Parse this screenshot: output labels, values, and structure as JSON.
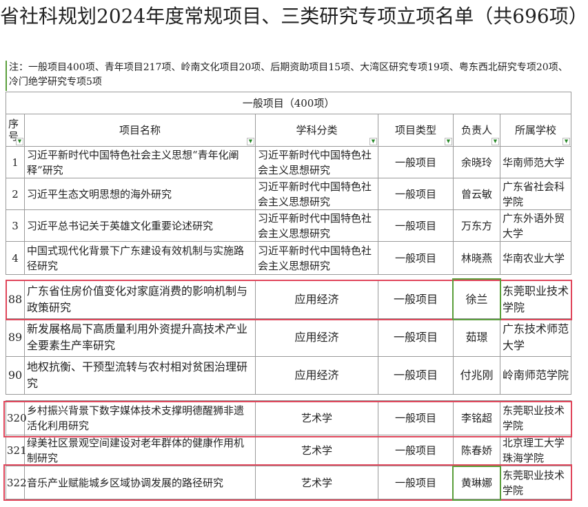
{
  "title": "省社科规划2024年度常规项目、三类研究专项立项名单（共696项）",
  "note": "注：一般项目400项、青年项目217项、岭南文化项目20项、后期资助项目15项、大湾区研究专项19项、粤东西北研究专项20项、冷门绝学研究专项5项",
  "section": "一般项目（400项）",
  "headers": [
    "序号",
    "项目名称",
    "学科分类",
    "项目类型",
    "负责人",
    "所属学校"
  ],
  "block1": [
    [
      "1",
      "习近平新时代中国特色社会主义思想“青年化阐释”研究",
      "习近平新时代中国特色社会主义思想研究",
      "一般项目",
      "余晓玲",
      "华南师范大学"
    ],
    [
      "2",
      "习近平生态文明思想的海外研究",
      "习近平新时代中国特色社会主义思想研究",
      "一般项目",
      "曾云敏",
      "广东省社会科学院"
    ],
    [
      "3",
      "习近平总书记关于英雄文化重要论述研究",
      "习近平新时代中国特色社会主义思想研究",
      "一般项目",
      "万东方",
      "广东外语外贸大学"
    ],
    [
      "4",
      "中国式现代化背景下广东建设有效机制与实施路径研究",
      "习近平新时代中国特色社会主义思想研究",
      "一般项目",
      "林晓燕",
      "华南农业大学"
    ]
  ],
  "block2": [
    [
      "88",
      "广东省住房价值变化对家庭消费的影响机制与政策研究",
      "应用经济",
      "一般项目",
      "徐兰",
      "东莞职业技术学院"
    ],
    [
      "89",
      "新发展格局下高质量利用外资提升高技术产业全要素生产率研究",
      "应用经济",
      "一般项目",
      "茹璟",
      "广东技术师范大学"
    ],
    [
      "90",
      "地权抗衡、干预型流转与农村相对贫困治理研究",
      "应用经济",
      "一般项目",
      "付兆刚",
      "岭南师范学院"
    ]
  ],
  "block3": [
    [
      "320",
      "乡村振兴背景下数字媒体技术支撑明德醒狮非遗活化利用研究",
      "艺术学",
      "一般项目",
      "李铭超",
      "东莞职业技术学院"
    ],
    [
      "321",
      "绿美社区景观空间建设对老年群体的健康作用机制研究",
      "艺术学",
      "一般项目",
      "陈春娇",
      "北京理工大学珠海学院"
    ],
    [
      "322",
      "音乐产业赋能城乡区域协调发展的路径研究",
      "艺术学",
      "一般项目",
      "黄琳娜",
      "东莞职业技术学院"
    ]
  ],
  "colors": {
    "highlight_red": "#e0455a",
    "selection_green": "#5a9e3a",
    "filter_arrow": "#2a8a2a"
  },
  "icons": {
    "filter": "filter-dropdown-icon"
  }
}
